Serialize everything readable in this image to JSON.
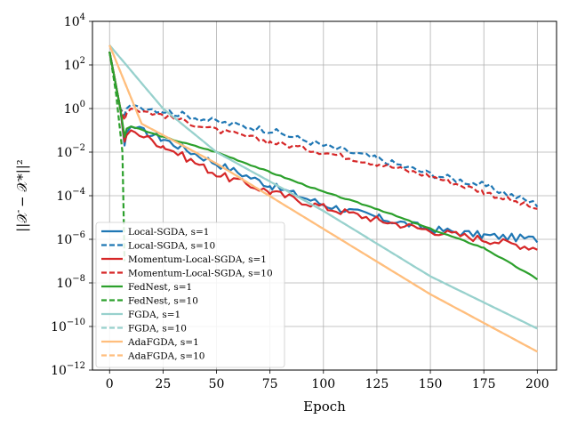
{
  "chart_data": {
    "type": "line",
    "xlabel": "Epoch",
    "ylabel": "||𝒳 − 𝒳*||²",
    "xlim": [
      -8,
      209
    ],
    "ylim": [
      1e-12,
      10000.0
    ],
    "yscale": "log",
    "grid": true,
    "legend_position": "lower-left",
    "x_ticks": [
      0,
      25,
      50,
      75,
      100,
      125,
      150,
      175,
      200
    ],
    "y_ticks": [
      {
        "value": 10000.0,
        "base": "10",
        "exp": "4"
      },
      {
        "value": 100.0,
        "base": "10",
        "exp": "2"
      },
      {
        "value": 1.0,
        "base": "10",
        "exp": "0"
      },
      {
        "value": 0.01,
        "base": "10",
        "exp": "−2"
      },
      {
        "value": 0.0001,
        "base": "10",
        "exp": "−4"
      },
      {
        "value": 1e-06,
        "base": "10",
        "exp": "−6"
      },
      {
        "value": 1e-08,
        "base": "10",
        "exp": "−8"
      },
      {
        "value": 1e-10,
        "base": "10",
        "exp": "−10"
      },
      {
        "value": 1e-12,
        "base": "10",
        "exp": "−12"
      }
    ],
    "series": [
      {
        "name": "Local-SGDA, s=1",
        "color": "#1f77b4",
        "style": "solid",
        "points": [
          [
            0,
            400
          ],
          [
            5,
            1
          ],
          [
            7,
            0.02
          ],
          [
            8,
            0.08
          ],
          [
            10,
            0.15
          ],
          [
            25,
            0.04
          ],
          [
            50,
            0.003
          ],
          [
            75,
            0.0003
          ],
          [
            100,
            4e-05
          ],
          [
            125,
            1e-05
          ],
          [
            150,
            3e-06
          ],
          [
            175,
            1.5e-06
          ],
          [
            200,
            1e-06
          ]
        ],
        "noise": 0.35
      },
      {
        "name": "Local-SGDA, s=10",
        "color": "#1f77b4",
        "style": "dashed",
        "points": [
          [
            0,
            400
          ],
          [
            5,
            1
          ],
          [
            7,
            0.5
          ],
          [
            8,
            1
          ],
          [
            10,
            1.5
          ],
          [
            25,
            0.8
          ],
          [
            50,
            0.25
          ],
          [
            75,
            0.1
          ],
          [
            100,
            0.02
          ],
          [
            125,
            0.005
          ],
          [
            150,
            0.001
          ],
          [
            175,
            0.0003
          ],
          [
            200,
            4e-05
          ]
        ],
        "noise": 0.3
      },
      {
        "name": "Momentum-Local-SGDA, s=1",
        "color": "#d62728",
        "style": "solid",
        "points": [
          [
            0,
            400
          ],
          [
            5,
            1
          ],
          [
            7,
            0.03
          ],
          [
            8,
            0.06
          ],
          [
            10,
            0.1
          ],
          [
            25,
            0.02
          ],
          [
            50,
            0.001
          ],
          [
            75,
            0.00015
          ],
          [
            100,
            3e-05
          ],
          [
            125,
            8e-06
          ],
          [
            150,
            2.5e-06
          ],
          [
            175,
            1e-06
          ],
          [
            200,
            4e-07
          ]
        ],
        "noise": 0.35
      },
      {
        "name": "Momentum-Local-SGDA, s=10",
        "color": "#d62728",
        "style": "dashed",
        "points": [
          [
            0,
            400
          ],
          [
            5,
            1
          ],
          [
            7,
            0.3
          ],
          [
            8,
            0.6
          ],
          [
            10,
            1
          ],
          [
            25,
            0.5
          ],
          [
            50,
            0.1
          ],
          [
            75,
            0.03
          ],
          [
            100,
            0.01
          ],
          [
            125,
            0.003
          ],
          [
            150,
            0.0008
          ],
          [
            175,
            0.00015
          ],
          [
            200,
            2.5e-05
          ]
        ],
        "noise": 0.25
      },
      {
        "name": "FedNest, s=1",
        "color": "#2ca02c",
        "style": "solid",
        "points": [
          [
            0,
            400
          ],
          [
            5,
            1
          ],
          [
            7,
            0.05
          ],
          [
            8,
            0.12
          ],
          [
            10,
            0.15
          ],
          [
            25,
            0.05
          ],
          [
            50,
            0.01
          ],
          [
            75,
            0.0012
          ],
          [
            100,
            0.00015
          ],
          [
            125,
            2.5e-05
          ],
          [
            150,
            3e-06
          ],
          [
            175,
            4e-07
          ],
          [
            200,
            1.5e-08
          ]
        ],
        "noise": 0.05
      },
      {
        "name": "FedNest, s=10",
        "color": "#2ca02c",
        "style": "dashed",
        "points": [
          [
            0,
            400
          ],
          [
            3,
            5
          ],
          [
            6,
            0.01
          ],
          [
            7,
            1e-07
          ]
        ],
        "noise": 0
      },
      {
        "name": "FGDA, s=1",
        "color": "#98d1cd",
        "style": "solid",
        "points": [
          [
            0,
            800
          ],
          [
            25,
            1
          ],
          [
            50,
            0.01
          ],
          [
            100,
            2e-05
          ],
          [
            150,
            2e-08
          ],
          [
            200,
            8e-11
          ]
        ],
        "noise": 0
      },
      {
        "name": "FGDA, s=10",
        "color": "#98d1cd",
        "style": "dashed",
        "points": [
          [
            0,
            800
          ],
          [
            25,
            1
          ],
          [
            50,
            0.01
          ],
          [
            100,
            2e-05
          ],
          [
            150,
            2e-08
          ],
          [
            200,
            8e-11
          ]
        ],
        "noise": 0
      },
      {
        "name": "AdaFGDA, s=1",
        "color": "#ffbe7d",
        "style": "solid",
        "points": [
          [
            0,
            800
          ],
          [
            15,
            0.2
          ],
          [
            50,
            0.003
          ],
          [
            100,
            3e-06
          ],
          [
            150,
            3e-09
          ],
          [
            200,
            7e-12
          ]
        ],
        "noise": 0
      },
      {
        "name": "AdaFGDA, s=10",
        "color": "#ffbe7d",
        "style": "dashed",
        "points": [
          [
            0,
            800
          ],
          [
            15,
            0.2
          ],
          [
            50,
            0.003
          ],
          [
            100,
            3e-06
          ],
          [
            150,
            3e-09
          ],
          [
            200,
            7e-12
          ]
        ],
        "noise": 0
      }
    ]
  }
}
